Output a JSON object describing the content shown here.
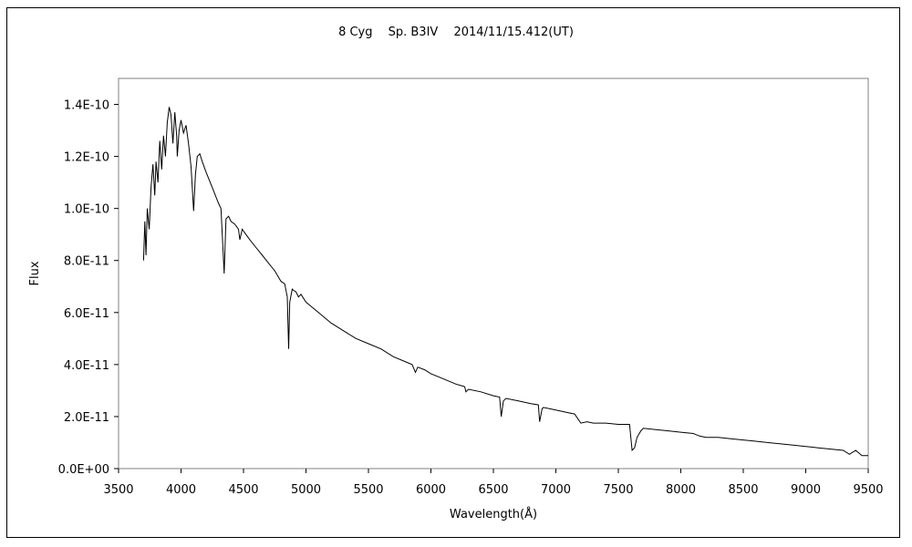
{
  "chart_data": {
    "type": "line",
    "title": "8 Cyg　 Sp. B3IV　 2014/11/15.412(UT)",
    "xlabel": "Wavelength(Å)",
    "ylabel": "Flux",
    "xlim": [
      3500,
      9500
    ],
    "ylim": [
      0,
      1.5e-10
    ],
    "xticks": [
      3500,
      4000,
      4500,
      5000,
      5500,
      6000,
      6500,
      7000,
      7500,
      8000,
      8500,
      9000,
      9500
    ],
    "xtick_labels": [
      "3500",
      "4000",
      "4500",
      "5000",
      "5500",
      "6000",
      "6500",
      "7000",
      "7500",
      "8000",
      "8500",
      "9000",
      "9500"
    ],
    "yticks": [
      0,
      2e-11,
      4e-11,
      6e-11,
      8e-11,
      1e-10,
      1.2e-10,
      1.4e-10
    ],
    "ytick_labels": [
      "0.0E+00",
      "2.0E-11",
      "4.0E-11",
      "6.0E-11",
      "8.0E-11",
      "1.0E-10",
      "1.2E-10",
      "1.4E-10"
    ],
    "grid": false,
    "legend": "none",
    "line_color": "#000000",
    "series": [
      {
        "x": [
          3700,
          3710,
          3720,
          3730,
          3745,
          3760,
          3775,
          3790,
          3800,
          3815,
          3830,
          3845,
          3860,
          3875,
          3890,
          3905,
          3920,
          3935,
          3950,
          3965,
          3970,
          3985,
          4000,
          4020,
          4040,
          4060,
          4080,
          4101,
          4115,
          4130,
          4150,
          4170,
          4200,
          4250,
          4300,
          4320,
          4340,
          4345,
          4360,
          4380,
          4400,
          4430,
          4460,
          4471,
          4490,
          4520,
          4550,
          4600,
          4650,
          4700,
          4750,
          4800,
          4830,
          4850,
          4861,
          4870,
          4890,
          4900,
          4920,
          4940,
          4960,
          5000,
          5050,
          5100,
          5200,
          5300,
          5400,
          5500,
          5600,
          5700,
          5800,
          5850,
          5876,
          5895,
          5950,
          6000,
          6100,
          6200,
          6270,
          6280,
          6300,
          6400,
          6500,
          6550,
          6563,
          6580,
          6600,
          6700,
          6800,
          6860,
          6870,
          6890,
          6900,
          7000,
          7100,
          7150,
          7200,
          7250,
          7300,
          7400,
          7500,
          7590,
          7610,
          7630,
          7650,
          7680,
          7700,
          7800,
          7900,
          8000,
          8100,
          8150,
          8200,
          8300,
          8400,
          8500,
          8600,
          8700,
          8800,
          8900,
          9000,
          9100,
          9200,
          9300,
          9350,
          9400,
          9450,
          9500
        ],
        "y": [
          8e-11,
          9.5e-11,
          8.2e-11,
          1e-10,
          9.2e-11,
          1.08e-10,
          1.17e-10,
          1.05e-10,
          1.18e-10,
          1.1e-10,
          1.26e-10,
          1.15e-10,
          1.28e-10,
          1.2e-10,
          1.33e-10,
          1.39e-10,
          1.36e-10,
          1.25e-10,
          1.37e-10,
          1.28e-10,
          1.2e-10,
          1.3e-10,
          1.34e-10,
          1.29e-10,
          1.32e-10,
          1.25e-10,
          1.16e-10,
          9.9e-11,
          1.13e-10,
          1.2e-10,
          1.21e-10,
          1.18e-10,
          1.14e-10,
          1.08e-10,
          1.02e-10,
          1e-10,
          8e-11,
          7.5e-11,
          9.6e-11,
          9.7e-11,
          9.5e-11,
          9.4e-11,
          9.2e-11,
          8.8e-11,
          9.2e-11,
          9e-11,
          8.8e-11,
          8.5e-11,
          8.2e-11,
          7.9e-11,
          7.6e-11,
          7.2e-11,
          7.1e-11,
          6.6e-11,
          4.6e-11,
          6.4e-11,
          6.9e-11,
          6.85e-11,
          6.8e-11,
          6.6e-11,
          6.7e-11,
          6.4e-11,
          6.2e-11,
          6e-11,
          5.6e-11,
          5.3e-11,
          5e-11,
          4.8e-11,
          4.6e-11,
          4.3e-11,
          4.1e-11,
          4e-11,
          3.7e-11,
          3.9e-11,
          3.8e-11,
          3.65e-11,
          3.45e-11,
          3.25e-11,
          3.15e-11,
          2.95e-11,
          3.05e-11,
          2.95e-11,
          2.8e-11,
          2.75e-11,
          2e-11,
          2.6e-11,
          2.7e-11,
          2.6e-11,
          2.5e-11,
          2.45e-11,
          1.8e-11,
          2.3e-11,
          2.35e-11,
          2.25e-11,
          2.15e-11,
          2.1e-11,
          1.75e-11,
          1.8e-11,
          1.75e-11,
          1.75e-11,
          1.7e-11,
          1.7e-11,
          7e-12,
          8e-12,
          1.2e-11,
          1.45e-11,
          1.55e-11,
          1.5e-11,
          1.45e-11,
          1.4e-11,
          1.35e-11,
          1.25e-11,
          1.2e-11,
          1.2e-11,
          1.15e-11,
          1.1e-11,
          1.05e-11,
          1e-11,
          9.5e-12,
          9e-12,
          8.5e-12,
          8e-12,
          7.5e-12,
          7e-12,
          5.5e-12,
          7e-12,
          5e-12,
          5e-12
        ]
      }
    ]
  }
}
